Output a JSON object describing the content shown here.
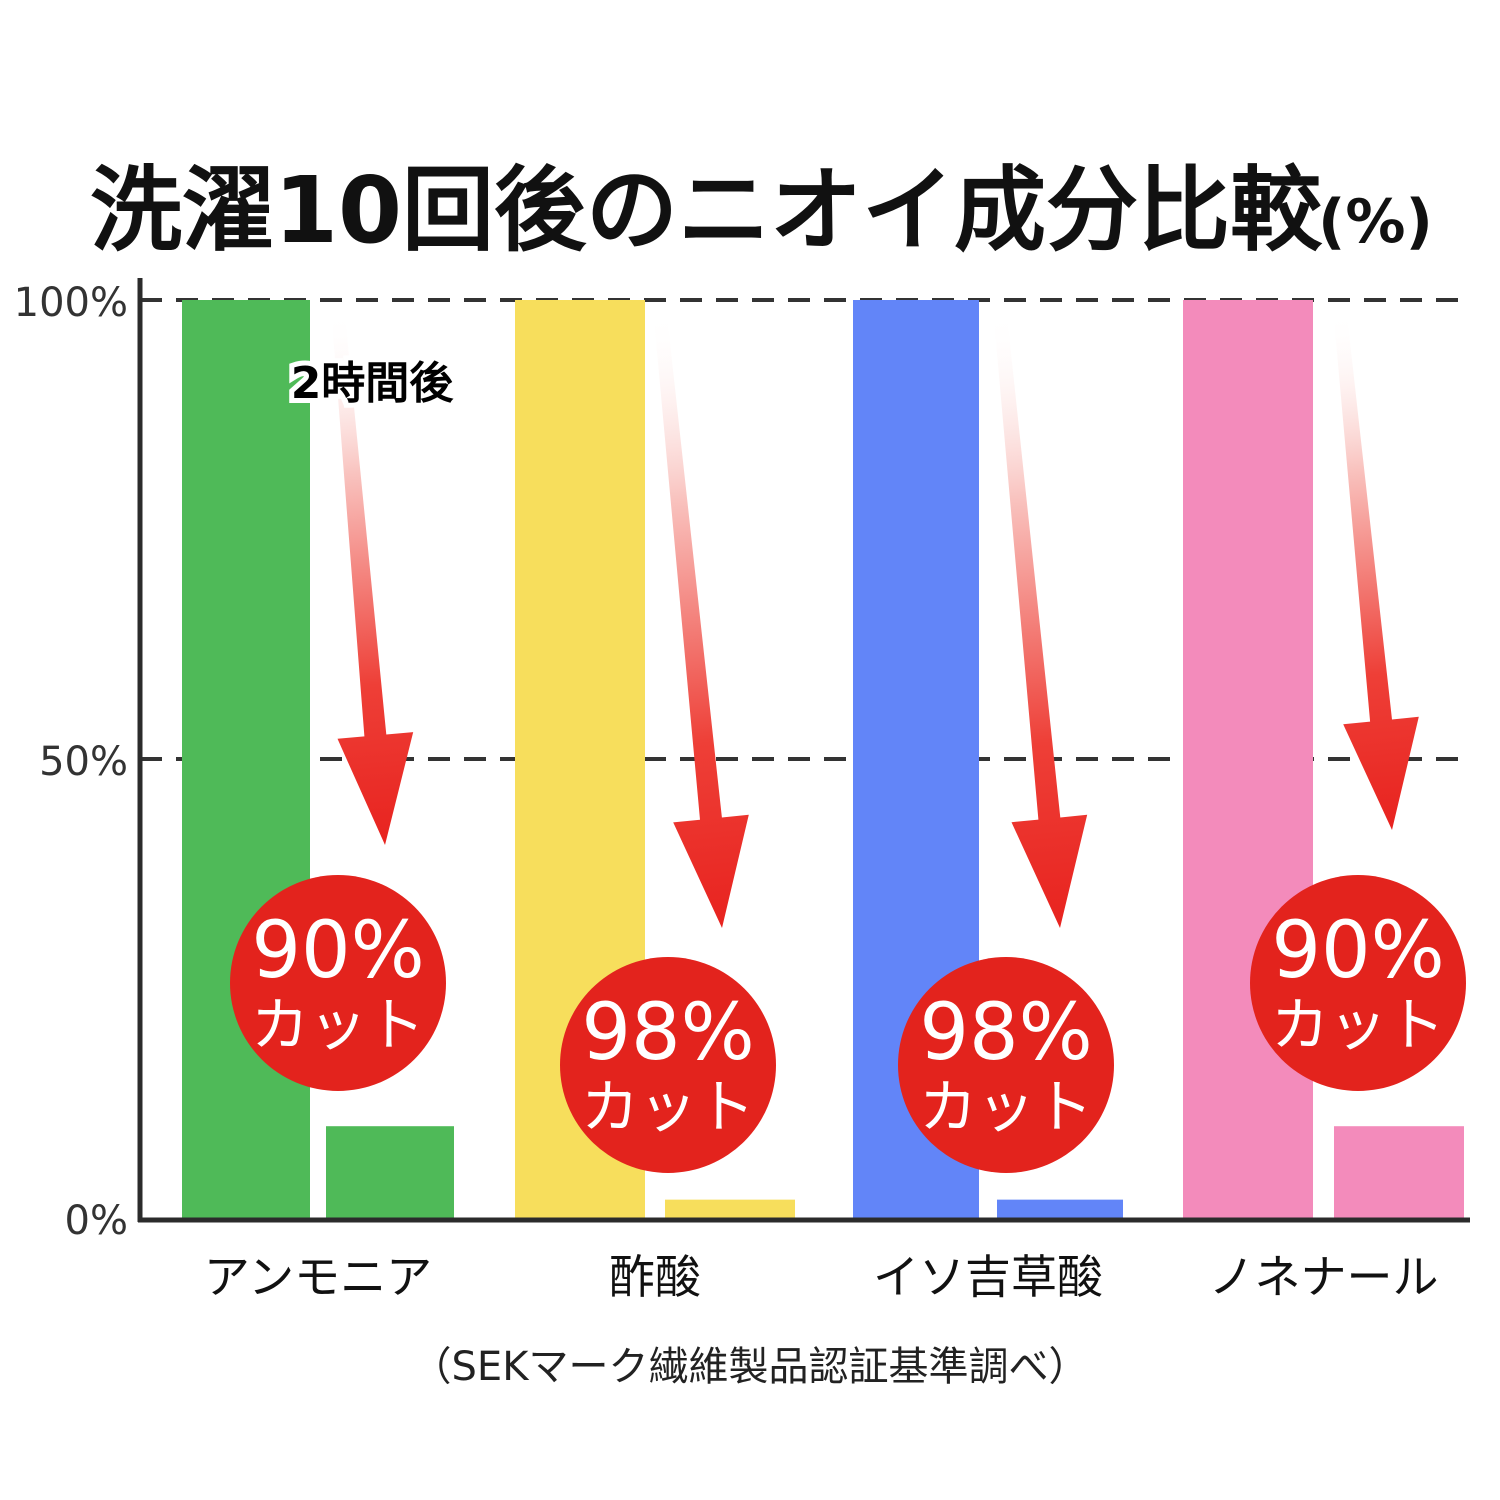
{
  "chart_data": {
    "type": "bar",
    "title": "洗濯10回後のニオイ成分比較",
    "title_unit": "(%)",
    "ylim": [
      0,
      100
    ],
    "yticks": [
      {
        "value": 100,
        "label": "100%"
      },
      {
        "value": 50,
        "label": "50%"
      },
      {
        "value": 0,
        "label": "0%"
      }
    ],
    "gridlines": [
      100,
      50
    ],
    "grid_style": "dashed",
    "categories": [
      "アンモニア",
      "酢酸",
      "イソ吉草酸",
      "ノネナール"
    ],
    "colors": [
      "#4fba58",
      "#f7de5c",
      "#6285f8",
      "#f38bbb"
    ],
    "series": [
      {
        "values": [
          100,
          100,
          100,
          100
        ]
      },
      {
        "values": [
          10,
          2,
          2,
          10
        ]
      }
    ],
    "annotations": {
      "after_label": "2時間後",
      "arrow_color": "#e8231f",
      "badge_color": "#e3231d",
      "badges": [
        {
          "percent": "90%",
          "text": "カット"
        },
        {
          "percent": "98%",
          "text": "カット"
        },
        {
          "percent": "98%",
          "text": "カット"
        },
        {
          "percent": "90%",
          "text": "カット"
        }
      ]
    },
    "source_note": "（SEKマーク繊維製品認証基準調べ）"
  }
}
